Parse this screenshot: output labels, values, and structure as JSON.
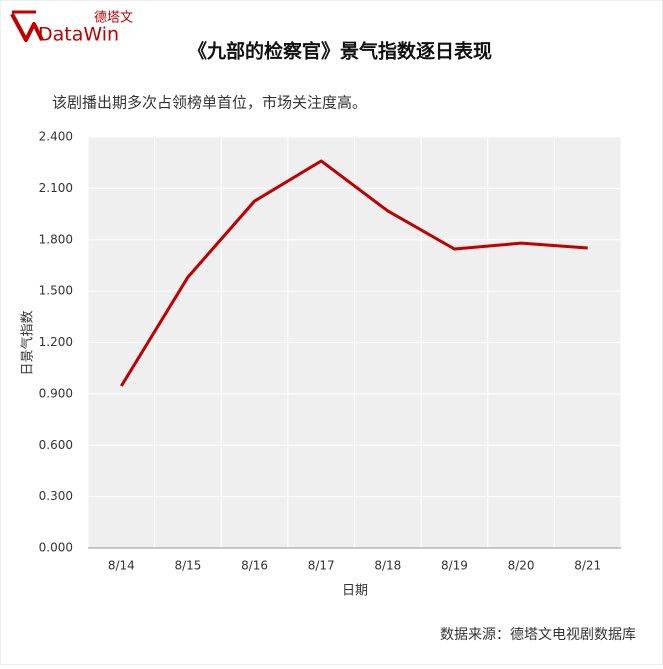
{
  "logo": {
    "brand_cn": "德塔文",
    "brand_en": "DataWin"
  },
  "chart_data": {
    "type": "line",
    "title": "《九部的检察官》景气指数逐日表现",
    "subtitle": "该剧播出期多次占领榜单首位，市场关注度高。",
    "x_label": "日期",
    "y_label": "日景气指数",
    "source": "数据来源：德塔文电视剧数据库",
    "categories": [
      "8/14",
      "8/15",
      "8/16",
      "8/17",
      "8/18",
      "8/19",
      "8/20",
      "8/21"
    ],
    "series": [
      {
        "name": "日景气指数",
        "color": "#c00000",
        "values": [
          0.946,
          1.582,
          2.026,
          2.26,
          1.968,
          1.746,
          1.78,
          1.752
        ]
      }
    ],
    "ylim": [
      0,
      2.4
    ],
    "yticks": [
      {
        "value": 0,
        "label": "0.000"
      },
      {
        "value": 0.3,
        "label": "0.300"
      },
      {
        "value": 0.6,
        "label": "0.600"
      },
      {
        "value": 0.9,
        "label": "0.900"
      },
      {
        "value": 1.2,
        "label": "1.200"
      },
      {
        "value": 1.5,
        "label": "1.500"
      },
      {
        "value": 1.8,
        "label": "1.800"
      },
      {
        "value": 2.1,
        "label": "2.100"
      },
      {
        "value": 2.4,
        "label": "2.400"
      }
    ],
    "grid": true
  }
}
